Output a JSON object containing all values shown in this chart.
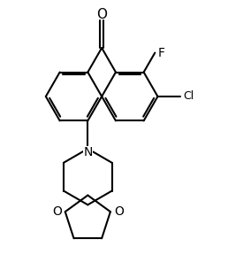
{
  "background_color": "#ffffff",
  "line_color": "#000000",
  "line_width": 1.5,
  "text_color": "#000000",
  "font_size": 9,
  "label_F": "F",
  "label_Cl": "Cl",
  "label_O": "O",
  "label_N": "N",
  "label_carbonyl_O": "O",
  "figw": 2.58,
  "figh": 3.14,
  "dpi": 100
}
